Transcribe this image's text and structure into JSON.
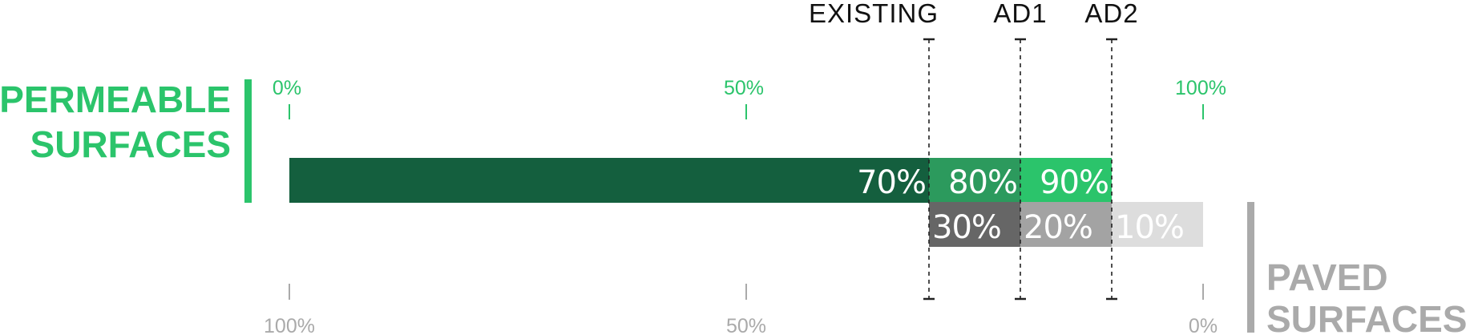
{
  "chart_data": {
    "type": "bar",
    "scenario_labels": [
      "EXISTING",
      "AD1",
      "AD2"
    ],
    "permeable": {
      "label_line1": "PERMEABLE",
      "label_line2": "SURFACES",
      "axis_ticks": [
        "0%",
        "50%",
        "100%"
      ],
      "values": [
        70,
        80,
        90
      ],
      "value_labels": [
        "70%",
        "80%",
        "90%"
      ],
      "colors": [
        "#145f3e",
        "#2c9a5d",
        "#2bc46b"
      ]
    },
    "paved": {
      "label_line1": "PAVED",
      "label_line2": "SURFACES",
      "axis_ticks": [
        "100%",
        "50%",
        "0%"
      ],
      "values": [
        30,
        20,
        10
      ],
      "value_labels": [
        "30%",
        "20%",
        "10%"
      ],
      "colors": [
        "#666666",
        "#a3a3a3",
        "#dddddd"
      ]
    },
    "xlim": [
      0,
      100
    ],
    "accent_colors": {
      "permeable": "#2bc46b",
      "paved": "#aaaaaa"
    }
  }
}
